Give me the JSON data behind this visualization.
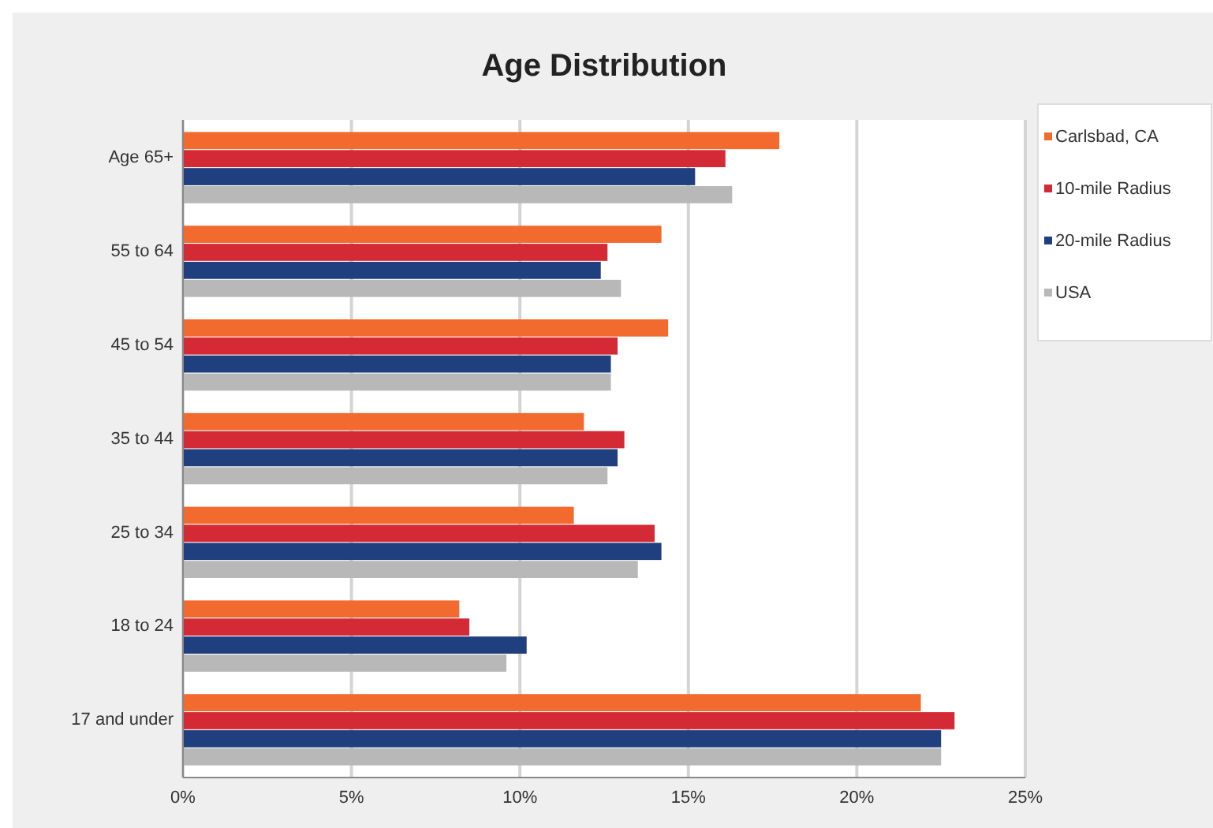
{
  "chart_data": {
    "type": "bar",
    "orientation": "horizontal",
    "title": "Age Distribution",
    "categories": [
      "Age 65+",
      "55 to 64",
      "45 to 54",
      "35 to 44",
      "25 to 34",
      "18 to 24",
      "17 and under"
    ],
    "series": [
      {
        "name": "Carlsbad, CA",
        "color": "#f26a2e",
        "values": [
          17.7,
          14.2,
          14.4,
          11.9,
          11.6,
          8.2,
          21.9
        ]
      },
      {
        "name": "10-mile Radius",
        "color": "#d42a36",
        "values": [
          16.1,
          12.6,
          12.9,
          13.1,
          14.0,
          8.5,
          22.9
        ]
      },
      {
        "name": "20-mile Radius",
        "color": "#1f3f7f",
        "values": [
          15.2,
          12.4,
          12.7,
          12.9,
          14.2,
          10.2,
          22.5
        ]
      },
      {
        "name": "USA",
        "color": "#b8b8b8",
        "values": [
          16.3,
          13.0,
          12.7,
          12.6,
          13.5,
          9.6,
          22.5
        ]
      }
    ],
    "xlim": [
      0,
      25
    ],
    "xticks": [
      {
        "value": 0,
        "label": "0%"
      },
      {
        "value": 5,
        "label": "5%"
      },
      {
        "value": 10,
        "label": "10%"
      },
      {
        "value": 15,
        "label": "15%"
      },
      {
        "value": 20,
        "label": "20%"
      },
      {
        "value": 25,
        "label": "25%"
      }
    ],
    "grid": "x",
    "legend": "right"
  }
}
